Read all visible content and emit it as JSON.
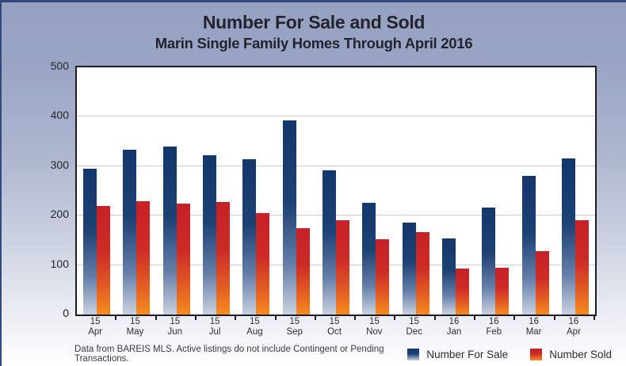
{
  "header": {
    "title": "Number For Sale and Sold",
    "subtitle": "Marin Single Family Homes Through April 2016"
  },
  "chart_data": {
    "type": "bar",
    "title": "Number For Sale and Sold",
    "subtitle": "Marin Single Family Homes Through April 2016",
    "categories": [
      {
        "year": "15",
        "month": "Apr"
      },
      {
        "year": "15",
        "month": "May"
      },
      {
        "year": "15",
        "month": "Jun"
      },
      {
        "year": "15",
        "month": "Jul"
      },
      {
        "year": "15",
        "month": "Aug"
      },
      {
        "year": "15",
        "month": "Sep"
      },
      {
        "year": "15",
        "month": "Oct"
      },
      {
        "year": "15",
        "month": "Nov"
      },
      {
        "year": "15",
        "month": "Dec"
      },
      {
        "year": "16",
        "month": "Jan"
      },
      {
        "year": "16",
        "month": "Feb"
      },
      {
        "year": "16",
        "month": "Mar"
      },
      {
        "year": "16",
        "month": "Apr"
      }
    ],
    "series": [
      {
        "name": "Number For Sale",
        "values": [
          295,
          333,
          339,
          322,
          314,
          392,
          291,
          226,
          186,
          154,
          216,
          280,
          316
        ],
        "color_top": "#14376b",
        "color_mid": "#1c4173",
        "color_fade": "#647da7",
        "color_bottom": "#c9d1e0"
      },
      {
        "name": "Number Sold",
        "values": [
          220,
          229,
          224,
          228,
          205,
          174,
          191,
          152,
          166,
          93,
          95,
          128,
          191
        ],
        "color_top": "#c62127",
        "color_mid": "#cd2a27",
        "color_fade": "#e25b23",
        "color_bottom": "#f68b1e"
      }
    ],
    "xlabel": "",
    "ylabel": "",
    "ylim": [
      0,
      500
    ],
    "yticks": [
      0,
      100,
      200,
      300,
      400,
      500
    ],
    "grid": true,
    "legend_position": "bottom-right",
    "colors": {
      "plot_background": "#ffffff",
      "plot_frame": "#1b1c26",
      "gridline": "#c9c9ce",
      "page_background_top": "#96a1c2",
      "page_background_bottom": "#ffffff",
      "page_border": "#31497b",
      "title_text": "#23242e",
      "axis_text": "#26262c"
    }
  },
  "footer": {
    "note": "Data from BAREIS MLS. Active listings do not include Contingent or Pending Transactions."
  }
}
